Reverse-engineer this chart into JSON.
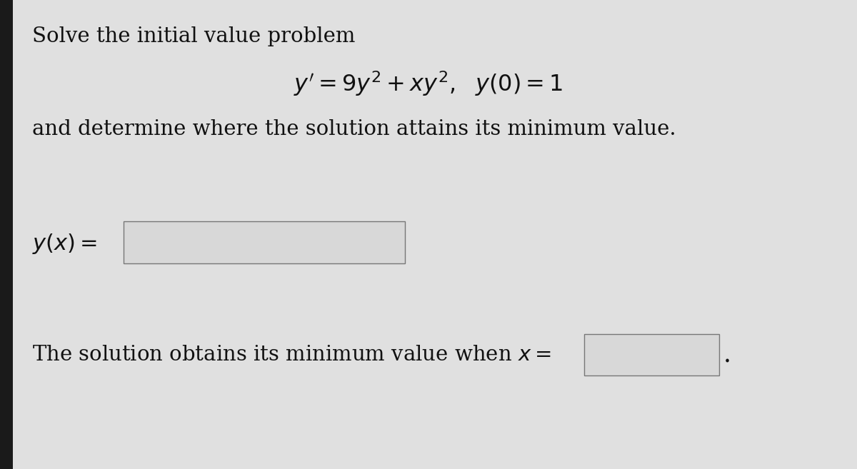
{
  "background_color": "#1a1a1a",
  "panel_color": "#d4d4d4",
  "inner_panel_color": "#e0e0e0",
  "box_color": "#d8d8d8",
  "text_color": "#111111",
  "line1": "Solve the initial value problem",
  "line2": "$y^{\\prime} = 9y^2 + xy^2, \\ \\ y(0) = 1$",
  "line3": "and determine where the solution attains its minimum value.",
  "label_yx": "$y(x) =$",
  "label_min": "The solution obtains its minimum value when $x =$",
  "fontsize_main": 21,
  "fontsize_eq": 23,
  "fontsize_label_yx": 22
}
